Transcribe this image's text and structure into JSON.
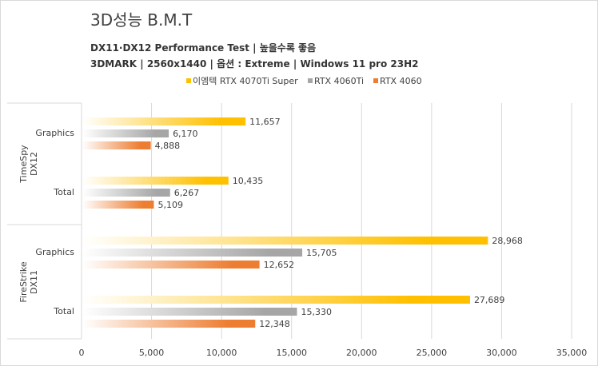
{
  "title": "3D성능 B.M.T",
  "subtitle1": "DX11·DX12 Performance Test | 높을수록 좋음",
  "subtitle2": "3DMARK | 2560x1440 | 옵션 : Extreme | Windows 11 pro 23H2",
  "colors": {
    "rtx4070tisuper": "#ffc000",
    "rtx4060ti": "#a6a6a6",
    "rtx4060": "#ed7d31",
    "grid": "#d9d9d9",
    "text": "#404040"
  },
  "chart_data": {
    "type": "bar",
    "orientation": "horizontal",
    "xlim": [
      0,
      35000
    ],
    "xticks": [
      "0",
      "5,000",
      "10,000",
      "15,000",
      "20,000",
      "25,000",
      "30,000",
      "35,000"
    ],
    "legend_position": "top",
    "groups": [
      {
        "label": "TimeSpy DX12",
        "categories": [
          {
            "label": "Graphics",
            "values": [
              11657,
              6170,
              4888
            ],
            "value_labels": [
              "11,657",
              "6,170",
              "4,888"
            ]
          },
          {
            "label": "Total",
            "values": [
              10435,
              6267,
              5109
            ],
            "value_labels": [
              "10,435",
              "6,267",
              "5,109"
            ]
          }
        ]
      },
      {
        "label": "FireStrike DX11",
        "categories": [
          {
            "label": "Graphics",
            "values": [
              28968,
              15705,
              12652
            ],
            "value_labels": [
              "28,968",
              "15,705",
              "12,652"
            ]
          },
          {
            "label": "Total",
            "values": [
              27689,
              15330,
              12348
            ],
            "value_labels": [
              "27,689",
              "15,330",
              "12,348"
            ]
          }
        ]
      }
    ],
    "series": [
      {
        "name": "이엠텍 RTX 4070Ti Super",
        "color": "#ffc000"
      },
      {
        "name": "RTX 4060Ti",
        "color": "#a6a6a6"
      },
      {
        "name": "RTX 4060",
        "color": "#ed7d31"
      }
    ]
  }
}
